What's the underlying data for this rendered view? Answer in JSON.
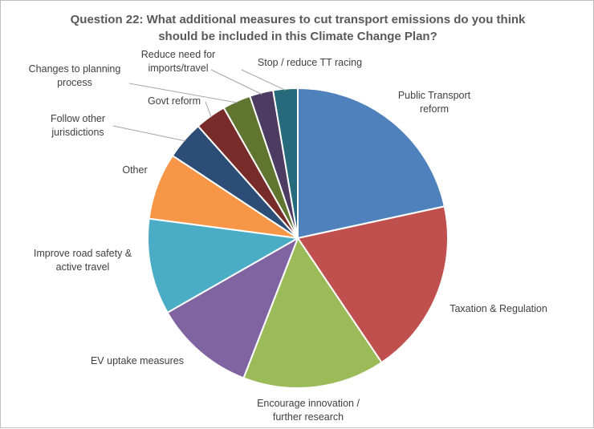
{
  "chart_data": {
    "type": "pie",
    "title": "Question 22: What additional measures to cut transport emissions do you think should be included in this Climate Change Plan?",
    "start_angle": 0,
    "direction": "clockwise",
    "series": [
      {
        "label": "Public Transport reform",
        "value": 21.3,
        "color": "#4f81bd"
      },
      {
        "label": "Taxation & Regulation",
        "value": 18.7,
        "color": "#c0504d"
      },
      {
        "label": "Encourage innovation / further research",
        "value": 15.1,
        "color": "#9bbb59"
      },
      {
        "label": "EV uptake measures",
        "value": 10.7,
        "color": "#8064a2"
      },
      {
        "label": "Improve road safety & active travel",
        "value": 10.2,
        "color": "#4bacc6"
      },
      {
        "label": "Other",
        "value": 7.1,
        "color": "#f79646"
      },
      {
        "label": "Follow other jurisdictions",
        "value": 4.1,
        "color": "#2c4d75"
      },
      {
        "label": "Govt reform",
        "value": 3.3,
        "color": "#772c2a"
      },
      {
        "label": "Changes to planning process",
        "value": 3.0,
        "color": "#5f7530"
      },
      {
        "label": "Reduce need for imports/travel",
        "value": 2.5,
        "color": "#4d3b62"
      },
      {
        "label": "Stop / reduce TT racing",
        "value": 2.6,
        "color": "#276a7c"
      }
    ]
  },
  "title_lines": "Question 22: What additional measures to cut transport emissions do you think\nshould be included in this Climate Change Plan?"
}
